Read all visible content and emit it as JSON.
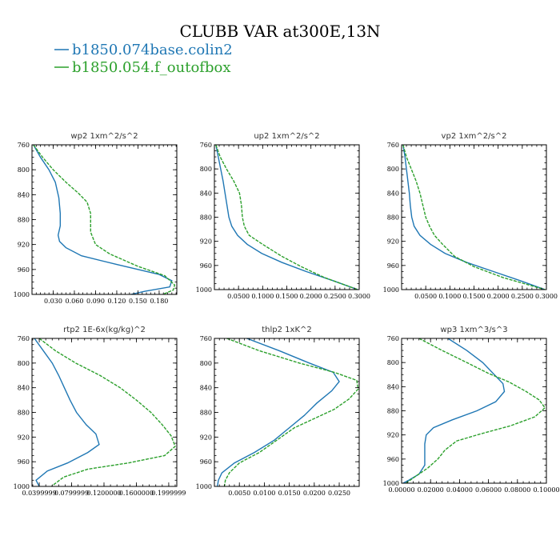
{
  "figure": {
    "title": "CLUBB VAR at300E,13N",
    "legend": [
      {
        "name": "b1850.074base.colin2",
        "color": "#1f77b4",
        "dash": "solid"
      },
      {
        "name": "b1850.054.f_outofbox",
        "color": "#2ca02c",
        "dash": "dashed"
      }
    ]
  },
  "chart_data": [
    {
      "type": "line",
      "title": "wp2  1xm^2/s^2",
      "xlim": [
        0,
        0.205
      ],
      "ylim": [
        760,
        1000
      ],
      "y_inverted": true,
      "xticks": [
        0.03,
        0.06,
        0.09,
        0.12,
        0.15,
        0.18
      ],
      "xtick_labels": [
        "0.030",
        "0.060",
        "0.090",
        "0.120",
        "0.150",
        "0.180"
      ],
      "yticks": [
        760,
        800,
        840,
        880,
        920,
        960,
        1000
      ],
      "ytick_labels": [
        "760",
        "800",
        "840",
        "880",
        "920",
        "960",
        "1000"
      ],
      "series": [
        {
          "name": "b1850.074base.colin2",
          "color": "#1f77b4",
          "dash": "solid",
          "points": [
            [
              0.002,
              760
            ],
            [
              0.012,
              780
            ],
            [
              0.024,
              800
            ],
            [
              0.033,
              820
            ],
            [
              0.038,
              845
            ],
            [
              0.04,
              870
            ],
            [
              0.04,
              890
            ],
            [
              0.037,
              905
            ],
            [
              0.039,
              915
            ],
            [
              0.048,
              925
            ],
            [
              0.07,
              938
            ],
            [
              0.12,
              952
            ],
            [
              0.18,
              968
            ],
            [
              0.198,
              978
            ],
            [
              0.195,
              988
            ],
            [
              0.16,
              995
            ],
            [
              0.14,
              1000
            ]
          ]
        },
        {
          "name": "b1850.054.f_outofbox",
          "color": "#2ca02c",
          "dash": "dashed",
          "points": [
            [
              0.002,
              760
            ],
            [
              0.015,
              780
            ],
            [
              0.03,
              800
            ],
            [
              0.048,
              820
            ],
            [
              0.066,
              838
            ],
            [
              0.078,
              852
            ],
            [
              0.083,
              870
            ],
            [
              0.083,
              900
            ],
            [
              0.09,
              920
            ],
            [
              0.11,
              935
            ],
            [
              0.15,
              955
            ],
            [
              0.188,
              970
            ],
            [
              0.202,
              985
            ],
            [
              0.2,
              993
            ],
            [
              0.185,
              1000
            ]
          ]
        }
      ]
    },
    {
      "type": "line",
      "title": "up2  1xm^2/s^2",
      "xlim": [
        0,
        0.3
      ],
      "ylim": [
        760,
        1000
      ],
      "y_inverted": true,
      "xticks": [
        0.05,
        0.1,
        0.15,
        0.2,
        0.25,
        0.3
      ],
      "xtick_labels": [
        "0.0500",
        "0.1000",
        "0.1500",
        "0.2000",
        "0.2500",
        "0.3000"
      ],
      "yticks": [
        760,
        800,
        840,
        880,
        920,
        960,
        1000
      ],
      "ytick_labels": [
        "760",
        "800",
        "840",
        "880",
        "920",
        "960",
        "1000"
      ],
      "series": [
        {
          "name": "b1850.074base.colin2",
          "color": "#1f77b4",
          "dash": "solid",
          "points": [
            [
              0.003,
              760
            ],
            [
              0.008,
              780
            ],
            [
              0.013,
              800
            ],
            [
              0.018,
              820
            ],
            [
              0.022,
              840
            ],
            [
              0.026,
              860
            ],
            [
              0.03,
              880
            ],
            [
              0.036,
              895
            ],
            [
              0.048,
              910
            ],
            [
              0.068,
              925
            ],
            [
              0.098,
              940
            ],
            [
              0.14,
              955
            ],
            [
              0.19,
              970
            ],
            [
              0.245,
              985
            ],
            [
              0.297,
              1000
            ]
          ]
        },
        {
          "name": "b1850.054.f_outofbox",
          "color": "#2ca02c",
          "dash": "dashed",
          "points": [
            [
              0.003,
              760
            ],
            [
              0.012,
              780
            ],
            [
              0.025,
              800
            ],
            [
              0.04,
              820
            ],
            [
              0.052,
              840
            ],
            [
              0.056,
              860
            ],
            [
              0.058,
              880
            ],
            [
              0.062,
              895
            ],
            [
              0.072,
              910
            ],
            [
              0.1,
              925
            ],
            [
              0.14,
              945
            ],
            [
              0.18,
              962
            ],
            [
              0.228,
              980
            ],
            [
              0.297,
              1000
            ]
          ]
        }
      ]
    },
    {
      "type": "line",
      "title": "vp2  1xm^2/s^2",
      "xlim": [
        0,
        0.3
      ],
      "ylim": [
        760,
        1000
      ],
      "y_inverted": true,
      "xticks": [
        0.05,
        0.1,
        0.15,
        0.2,
        0.25,
        0.3
      ],
      "xtick_labels": [
        "0.0500",
        "0.1000",
        "0.1500",
        "0.2000",
        "0.2500",
        "0.3000"
      ],
      "yticks": [
        760,
        800,
        840,
        880,
        920,
        960,
        1000
      ],
      "ytick_labels": [
        "760",
        "800",
        "840",
        "880",
        "920",
        "960",
        "1000"
      ],
      "series": [
        {
          "name": "b1850.074base.colin2",
          "color": "#1f77b4",
          "dash": "solid",
          "points": [
            [
              0.003,
              760
            ],
            [
              0.007,
              780
            ],
            [
              0.01,
              800
            ],
            [
              0.013,
              820
            ],
            [
              0.016,
              840
            ],
            [
              0.018,
              860
            ],
            [
              0.021,
              880
            ],
            [
              0.026,
              895
            ],
            [
              0.038,
              910
            ],
            [
              0.06,
              925
            ],
            [
              0.09,
              940
            ],
            [
              0.135,
              955
            ],
            [
              0.19,
              970
            ],
            [
              0.245,
              985
            ],
            [
              0.297,
              1000
            ]
          ]
        },
        {
          "name": "b1850.054.f_outofbox",
          "color": "#2ca02c",
          "dash": "dashed",
          "points": [
            [
              0.003,
              760
            ],
            [
              0.01,
              780
            ],
            [
              0.02,
              800
            ],
            [
              0.03,
              820
            ],
            [
              0.038,
              840
            ],
            [
              0.044,
              860
            ],
            [
              0.05,
              880
            ],
            [
              0.058,
              895
            ],
            [
              0.068,
              910
            ],
            [
              0.085,
              925
            ],
            [
              0.11,
              945
            ],
            [
              0.15,
              962
            ],
            [
              0.21,
              980
            ],
            [
              0.297,
              1000
            ]
          ]
        }
      ]
    },
    {
      "type": "line",
      "title": "rtp2  1E-6x(kg/kg)^2",
      "xlim": [
        0.031,
        0.21
      ],
      "ylim": [
        760,
        1000
      ],
      "y_inverted": true,
      "xticks": [
        0.04,
        0.08,
        0.12,
        0.16,
        0.2
      ],
      "xtick_labels": [
        "0.0399999",
        "0.0799999",
        "0.1200000",
        "0.1600000",
        "0.1999999"
      ],
      "yticks": [
        760,
        800,
        840,
        880,
        920,
        960,
        1000
      ],
      "ytick_labels": [
        "760",
        "800",
        "840",
        "880",
        "920",
        "960",
        "1000"
      ],
      "series": [
        {
          "name": "b1850.074base.colin2",
          "color": "#1f77b4",
          "dash": "solid",
          "points": [
            [
              0.034,
              760
            ],
            [
              0.045,
              780
            ],
            [
              0.056,
              800
            ],
            [
              0.064,
              820
            ],
            [
              0.071,
              840
            ],
            [
              0.078,
              860
            ],
            [
              0.086,
              880
            ],
            [
              0.098,
              900
            ],
            [
              0.11,
              915
            ],
            [
              0.114,
              932
            ],
            [
              0.1,
              945
            ],
            [
              0.075,
              962
            ],
            [
              0.05,
              975
            ],
            [
              0.036,
              990
            ],
            [
              0.04,
              1000
            ]
          ]
        },
        {
          "name": "b1850.054.f_outofbox",
          "color": "#2ca02c",
          "dash": "dashed",
          "points": [
            [
              0.04,
              760
            ],
            [
              0.06,
              780
            ],
            [
              0.085,
              800
            ],
            [
              0.115,
              820
            ],
            [
              0.14,
              840
            ],
            [
              0.16,
              860
            ],
            [
              0.178,
              880
            ],
            [
              0.192,
              900
            ],
            [
              0.203,
              918
            ],
            [
              0.208,
              935
            ],
            [
              0.195,
              950
            ],
            [
              0.15,
              962
            ],
            [
              0.1,
              972
            ],
            [
              0.07,
              985
            ],
            [
              0.055,
              1000
            ]
          ]
        }
      ]
    },
    {
      "type": "line",
      "title": "thlp2  1xK^2",
      "xlim": [
        0,
        0.029
      ],
      "ylim": [
        760,
        1000
      ],
      "y_inverted": true,
      "xticks": [
        0.005,
        0.01,
        0.015,
        0.02,
        0.025
      ],
      "xtick_labels": [
        "0.0050",
        "0.0100",
        "0.0150",
        "0.0200",
        "0.0250"
      ],
      "yticks": [
        760,
        800,
        840,
        880,
        920,
        960,
        1000
      ],
      "ytick_labels": [
        "760",
        "800",
        "840",
        "880",
        "920",
        "960",
        "1000"
      ],
      "series": [
        {
          "name": "b1850.074base.colin2",
          "color": "#1f77b4",
          "dash": "solid",
          "points": [
            [
              0.0065,
              760
            ],
            [
              0.013,
              780
            ],
            [
              0.019,
              800
            ],
            [
              0.0238,
              815
            ],
            [
              0.025,
              830
            ],
            [
              0.0235,
              845
            ],
            [
              0.0205,
              865
            ],
            [
              0.018,
              885
            ],
            [
              0.015,
              905
            ],
            [
              0.012,
              925
            ],
            [
              0.008,
              945
            ],
            [
              0.004,
              962
            ],
            [
              0.0015,
              978
            ],
            [
              0.0008,
              990
            ],
            [
              0.0006,
              1000
            ]
          ]
        },
        {
          "name": "b1850.054.f_outofbox",
          "color": "#2ca02c",
          "dash": "dashed",
          "points": [
            [
              0.0025,
              760
            ],
            [
              0.009,
              780
            ],
            [
              0.017,
              800
            ],
            [
              0.024,
              815
            ],
            [
              0.0285,
              828
            ],
            [
              0.0288,
              842
            ],
            [
              0.027,
              858
            ],
            [
              0.024,
              875
            ],
            [
              0.02,
              890
            ],
            [
              0.016,
              905
            ],
            [
              0.0125,
              925
            ],
            [
              0.009,
              945
            ],
            [
              0.005,
              962
            ],
            [
              0.003,
              978
            ],
            [
              0.0022,
              990
            ],
            [
              0.002,
              1000
            ]
          ]
        }
      ]
    },
    {
      "type": "line",
      "title": "wp3  1xm^3/s^3",
      "xlim": [
        0,
        0.1
      ],
      "ylim": [
        760,
        1000
      ],
      "y_inverted": true,
      "xticks": [
        0.0,
        0.02,
        0.04,
        0.06,
        0.08,
        0.1
      ],
      "xtick_labels": [
        "0.00000",
        "0.02000",
        "0.04000",
        "0.06000",
        "0.08000",
        "0.10000"
      ],
      "yticks": [
        760,
        800,
        840,
        880,
        920,
        960,
        1000
      ],
      "ytick_labels": [
        "760",
        "800",
        "840",
        "880",
        "920",
        "960",
        "1000"
      ],
      "series": [
        {
          "name": "b1850.074base.colin2",
          "color": "#1f77b4",
          "dash": "solid",
          "points": [
            [
              0.032,
              760
            ],
            [
              0.045,
              780
            ],
            [
              0.056,
              800
            ],
            [
              0.064,
              820
            ],
            [
              0.07,
              835
            ],
            [
              0.071,
              848
            ],
            [
              0.065,
              865
            ],
            [
              0.052,
              880
            ],
            [
              0.035,
              895
            ],
            [
              0.022,
              908
            ],
            [
              0.017,
              920
            ],
            [
              0.016,
              935
            ],
            [
              0.016,
              955
            ],
            [
              0.016,
              970
            ],
            [
              0.012,
              985
            ],
            [
              0.005,
              995
            ],
            [
              0.001,
              1000
            ]
          ]
        },
        {
          "name": "b1850.054.f_outofbox",
          "color": "#2ca02c",
          "dash": "dashed",
          "points": [
            [
              0.012,
              760
            ],
            [
              0.028,
              780
            ],
            [
              0.045,
              800
            ],
            [
              0.06,
              818
            ],
            [
              0.074,
              832
            ],
            [
              0.086,
              848
            ],
            [
              0.095,
              862
            ],
            [
              0.099,
              875
            ],
            [
              0.092,
              890
            ],
            [
              0.075,
              905
            ],
            [
              0.055,
              918
            ],
            [
              0.038,
              930
            ],
            [
              0.03,
              945
            ],
            [
              0.025,
              960
            ],
            [
              0.018,
              975
            ],
            [
              0.01,
              988
            ],
            [
              0.003,
              1000
            ]
          ]
        }
      ]
    }
  ]
}
